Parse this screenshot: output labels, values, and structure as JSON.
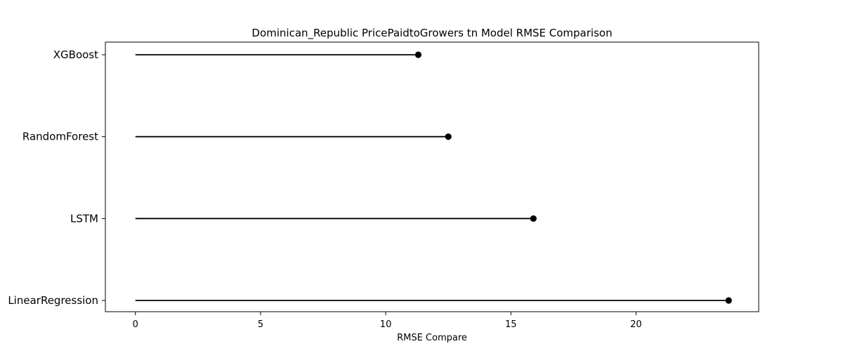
{
  "chart_data": {
    "type": "lollipop",
    "title": "Dominican_Republic PricePaidtoGrowers tn Model RMSE Comparison",
    "xlabel": "RMSE Compare",
    "ylabel": "",
    "categories": [
      "XGBoost",
      "RandomForest",
      "LSTM",
      "LinearRegression"
    ],
    "values": [
      11.3,
      12.5,
      15.9,
      23.7
    ],
    "xlim": [
      -1.2,
      24.9
    ],
    "xticks": [
      0,
      5,
      10,
      15,
      20
    ],
    "xtick_labels": [
      "0",
      "5",
      "10",
      "15",
      "20"
    ],
    "grid": false,
    "line_color": "#000000",
    "marker_color": "#000000"
  }
}
